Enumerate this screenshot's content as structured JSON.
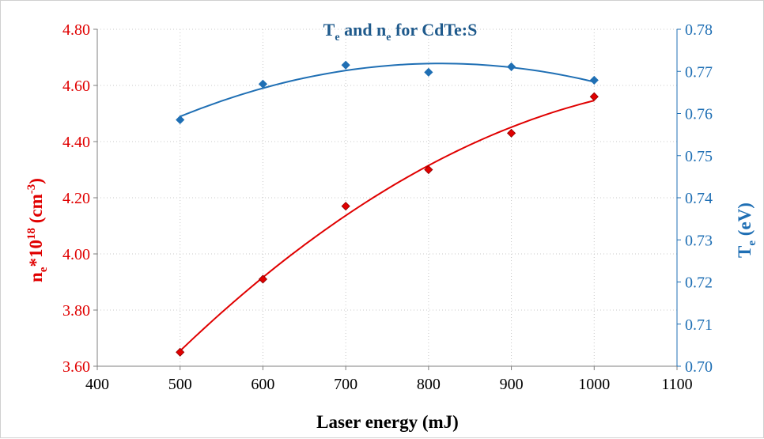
{
  "chart_data": {
    "type": "scatter",
    "title": {
      "main": "T",
      "sub1": "e",
      "mid": " and n",
      "sub2": "e",
      "tail": " for CdTe:S"
    },
    "xlabel": "Laser energy (mJ)",
    "ylabel_left": {
      "main": "n",
      "sub": "e",
      "mid": "*10",
      "sup": "18",
      "tail": " (cm",
      "sup2": "-3",
      "end": ")"
    },
    "ylabel_right": {
      "main": "T",
      "sub": "e",
      "tail": " (eV)"
    },
    "xlim": [
      400,
      1100
    ],
    "xticks": [
      400,
      500,
      600,
      700,
      800,
      900,
      1000,
      1100
    ],
    "xtick_labels": [
      "400",
      "500",
      "600",
      "700",
      "800",
      "900",
      "1000",
      "1100"
    ],
    "ylim_left": [
      3.6,
      4.8
    ],
    "yticks_left": [
      3.6,
      3.8,
      4.0,
      4.2,
      4.4,
      4.6,
      4.8
    ],
    "ytick_labels_left": [
      "3.60",
      "3.80",
      "4.00",
      "4.20",
      "4.40",
      "4.60",
      "4.80"
    ],
    "ylim_right": [
      0.7,
      0.78
    ],
    "yticks_right": [
      0.7,
      0.71,
      0.72,
      0.73,
      0.74,
      0.75,
      0.76,
      0.77,
      0.78
    ],
    "ytick_labels_right": [
      "0.70",
      "0.71",
      "0.72",
      "0.73",
      "0.74",
      "0.75",
      "0.76",
      "0.77",
      "0.78"
    ],
    "grid": "dotted",
    "series": [
      {
        "axis": "left",
        "color": "#e00000",
        "marker": "diamond",
        "trendline": "polynomial",
        "x": [
          500,
          600,
          700,
          800,
          900,
          1000
        ],
        "y": [
          3.65,
          3.91,
          4.17,
          4.3,
          4.43,
          4.56
        ]
      },
      {
        "axis": "right",
        "color": "#1f6fb4",
        "marker": "diamond",
        "trendline": "polynomial",
        "x": [
          500,
          600,
          700,
          800,
          900,
          1000
        ],
        "y": [
          0.7585,
          0.767,
          0.7715,
          0.7698,
          0.7711,
          0.7679
        ]
      }
    ]
  }
}
